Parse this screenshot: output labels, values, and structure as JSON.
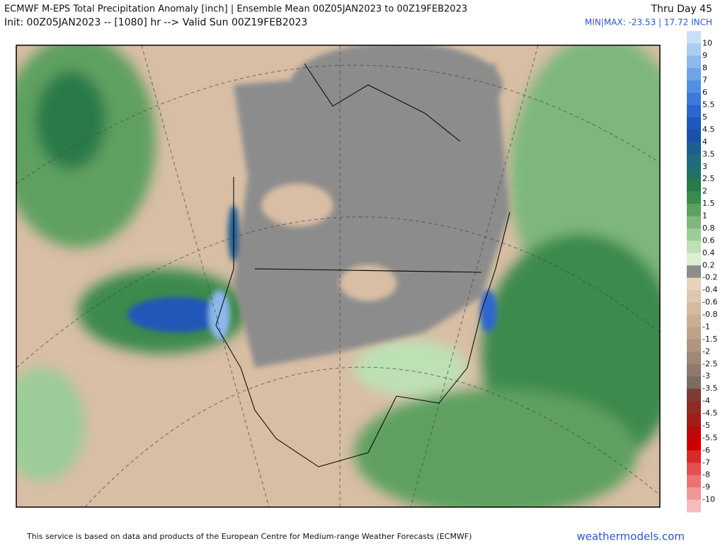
{
  "header": {
    "title": "ECMWF M-EPS Total Precipitation Anomaly [inch] | Ensemble Mean 00Z05JAN2023 to 00Z19FEB2023",
    "subtitle": "Init: 00Z05JAN2023 -- [1080] hr --> Valid Sun 00Z19FEB2023",
    "right_title": "Thru Day 45",
    "minmax": "MIN|MAX: -23.53 | 17.72 INCH"
  },
  "legend": {
    "colors": [
      "#c8e0f5",
      "#aacdf0",
      "#8cb9ec",
      "#6fa3e6",
      "#568fe0",
      "#3f79d6",
      "#2d66cc",
      "#2256b8",
      "#1c4fa8",
      "#1f5f8f",
      "#216a7a",
      "#23706a",
      "#2a7a4a",
      "#3c8a4e",
      "#5ea060",
      "#7db77c",
      "#9ccc98",
      "#bde0b5",
      "#dcefd3",
      "#8c8c8c",
      "#e8d2bc",
      "#dfc6ae",
      "#d5baa1",
      "#cbae96",
      "#bfa28b",
      "#b09581",
      "#a08778",
      "#8e7a6e",
      "#7b6c63",
      "#7d3b36",
      "#8e2c28",
      "#a01e1a",
      "#b80c0c",
      "#cc0000",
      "#d82a2a",
      "#e25050",
      "#ea7474",
      "#f09898",
      "#f6bcbc"
    ],
    "labels": [
      "10",
      "9",
      "8",
      "7",
      "6",
      "5.5",
      "5",
      "4.5",
      "4",
      "3.5",
      "3",
      "2.5",
      "2",
      "1.5",
      "1",
      "0.8",
      "0.6",
      "0.4",
      "0.2",
      "-0.2",
      "-0.4",
      "-0.6",
      "-0.8",
      "-1",
      "-1.5",
      "-2",
      "-2.5",
      "-3",
      "-3.5",
      "-4",
      "-4.5",
      "-5",
      "-5.5",
      "-6",
      "-7",
      "-8",
      "-9",
      "-10"
    ]
  },
  "footer": {
    "disclaimer": "This service is based on data and products of the European Centre for Medium-range Weather Forecasts (ECMWF)",
    "site": "weathermodels.com"
  }
}
